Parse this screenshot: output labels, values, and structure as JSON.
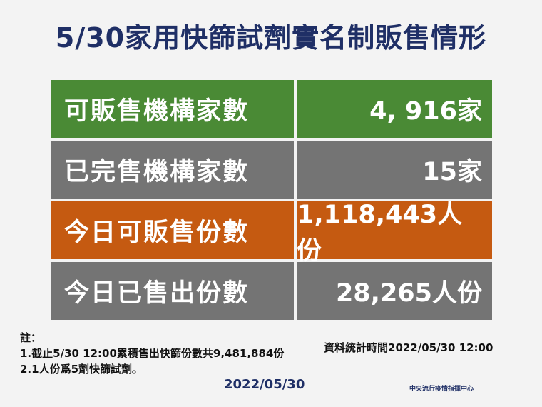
{
  "title": "5/30家用快篩試劑實名制販售情形",
  "rows": [
    {
      "label": "可販售機構家數",
      "value": "4, 916家",
      "color": "#4a8a35"
    },
    {
      "label": "已完售機構家數",
      "value": "15家",
      "color": "#747474"
    },
    {
      "label": "今日可販售份數",
      "value": "1,118,443人份",
      "color": "#c55a11"
    },
    {
      "label": "今日已售出份數",
      "value": "28,265人份",
      "color": "#747474"
    }
  ],
  "notes": {
    "heading": "註：",
    "items": [
      "1.截止5/30 12:00累積售出快篩份數共9,481,884份",
      "2.1人份爲5劑快篩試劑。"
    ]
  },
  "stat_time": "資料統計時間2022/05/30 12:00",
  "date": "2022/05/30",
  "organization": "中央流行疫情指揮中心"
}
